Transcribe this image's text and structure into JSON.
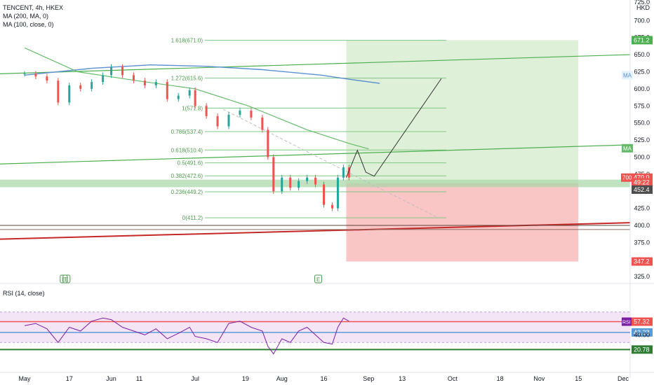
{
  "legend": {
    "symbol_line": "TENCENT, 4h, HKEX",
    "ma200_line": "MA (200, MA, 0)",
    "ma100_line": "MA (100, close, 0)",
    "rsi_line": "RSI (14, close)"
  },
  "axis": {
    "currency": "HKD",
    "top_partial": "725.0",
    "ma_tag": "MA",
    "rsi_tag": "RSI",
    "last_price_label": "700"
  },
  "colors": {
    "up": "#26a69a",
    "down": "#ef5350",
    "ma200": "#5b8fd0",
    "ma100": "#66bb6a",
    "trendline_green": "#4caf50",
    "trendline_red": "#c62828",
    "fib": "#81c784",
    "profit_zone": "#dff0d8",
    "loss_zone": "#f9c5c5",
    "rsi_fill": "#f3e5f5",
    "rsi_line": "#7b1fa2"
  },
  "chart_data": [
    {
      "type": "line",
      "title": "TENCENT, 4h, HKEX",
      "ylabel": "HKD",
      "ylim": [
        315,
        730
      ],
      "x_tick_labels": [
        "May",
        "17",
        "Jun",
        "11",
        "Jul",
        "19",
        "Aug",
        "16",
        "Sep",
        "13",
        "Oct",
        "18",
        "Nov",
        "15",
        "Dec"
      ],
      "y_tick_labels": [
        "700.0",
        "675.0",
        "650.0",
        "625.0",
        "600.0",
        "575.0",
        "550.0",
        "525.0",
        "500.0",
        "475.0",
        "450.0",
        "425.0",
        "400.0",
        "375.0",
        "350.0",
        "325.0"
      ],
      "series": [
        {
          "name": "TENCENT",
          "x": [
            "05-01",
            "05-05",
            "05-09",
            "05-13",
            "05-17",
            "05-21",
            "05-25",
            "05-29",
            "06-01",
            "06-05",
            "06-09",
            "06-13",
            "06-17",
            "06-21",
            "06-25",
            "06-29",
            "07-01",
            "07-05",
            "07-09",
            "07-13",
            "07-17",
            "07-21",
            "07-25",
            "07-27",
            "07-29",
            "08-01",
            "08-04",
            "08-07",
            "08-10",
            "08-13",
            "08-16",
            "08-19",
            "08-21",
            "08-23",
            "08-25"
          ],
          "values": [
            622,
            618,
            612,
            580,
            605,
            600,
            610,
            620,
            632,
            620,
            612,
            605,
            610,
            585,
            590,
            598,
            575,
            560,
            545,
            562,
            568,
            558,
            540,
            500,
            450,
            470,
            455,
            465,
            470,
            460,
            430,
            425,
            470,
            485,
            470
          ]
        },
        {
          "name": "MA (200, MA, 0)",
          "x": [
            "05-01",
            "05-25",
            "06-15",
            "07-05",
            "07-25",
            "08-15",
            "08-25",
            "09-05"
          ],
          "values": [
            620,
            630,
            635,
            633,
            628,
            620,
            614,
            608
          ]
        },
        {
          "name": "MA (100, close, 0)",
          "x": [
            "05-01",
            "05-20",
            "06-10",
            "07-01",
            "07-20",
            "08-10",
            "08-25",
            "09-01"
          ],
          "values": [
            660,
            625,
            612,
            600,
            575,
            540,
            520,
            512
          ]
        }
      ],
      "fibonacci": [
        {
          "label": "1.618(671.0)",
          "value": 671.0
        },
        {
          "label": "1.272(615.6)",
          "value": 615.6
        },
        {
          "label": "1(571.8)",
          "value": 571.8
        },
        {
          "label": "0.786(537.4)",
          "value": 537.4
        },
        {
          "label": "0.618(510.4)",
          "value": 510.4
        },
        {
          "label": "0.5(491.6)",
          "value": 491.6
        },
        {
          "label": "0.382(472.6)",
          "value": 472.6
        },
        {
          "label": "0.236(449.2)",
          "value": 449.2
        },
        {
          "label": "0(411.2)",
          "value": 411.2
        }
      ],
      "price_tags": [
        {
          "label": "671.2",
          "value": 671.2,
          "color": "#4caf50"
        },
        {
          "label": "470.0",
          "value": 470.0,
          "color": "#ef5350"
        },
        {
          "label": "49:22",
          "value": 463.0,
          "color": "#ef5350"
        },
        {
          "label": "452.4",
          "value": 452.4,
          "color": "#4c4c4c"
        },
        {
          "label": "347.2",
          "value": 347.2,
          "color": "#ef5350"
        }
      ],
      "position": {
        "entry": 461.5,
        "target": 671.2,
        "stop": 347.2,
        "start": "08-24",
        "end": "11-15"
      }
    },
    {
      "type": "line",
      "title": "RSI (14, close)",
      "ylim": [
        0,
        100
      ],
      "y_tick_labels": [
        "40.00"
      ],
      "levels": [
        {
          "label": "57.32",
          "value": 57.32,
          "color": "#ef5350"
        },
        {
          "label": "43.23",
          "value": 43.23,
          "color": "#5b9bd5"
        },
        {
          "label": "20.78",
          "value": 20.78,
          "color": "#2e7d32"
        }
      ],
      "series": [
        {
          "name": "RSI (14, close)",
          "x": [
            "05-01",
            "05-05",
            "05-09",
            "05-13",
            "05-17",
            "05-21",
            "05-25",
            "05-29",
            "06-01",
            "06-05",
            "06-09",
            "06-13",
            "06-17",
            "06-21",
            "06-25",
            "06-29",
            "07-01",
            "07-05",
            "07-09",
            "07-13",
            "07-17",
            "07-21",
            "07-25",
            "07-27",
            "07-29",
            "08-01",
            "08-04",
            "08-07",
            "08-10",
            "08-13",
            "08-16",
            "08-19",
            "08-21",
            "08-23",
            "08-25"
          ],
          "values": [
            52,
            55,
            48,
            30,
            50,
            45,
            58,
            62,
            60,
            50,
            45,
            40,
            48,
            35,
            42,
            50,
            38,
            35,
            30,
            55,
            58,
            50,
            45,
            25,
            15,
            35,
            30,
            45,
            50,
            40,
            30,
            28,
            50,
            62,
            58
          ]
        }
      ]
    }
  ]
}
